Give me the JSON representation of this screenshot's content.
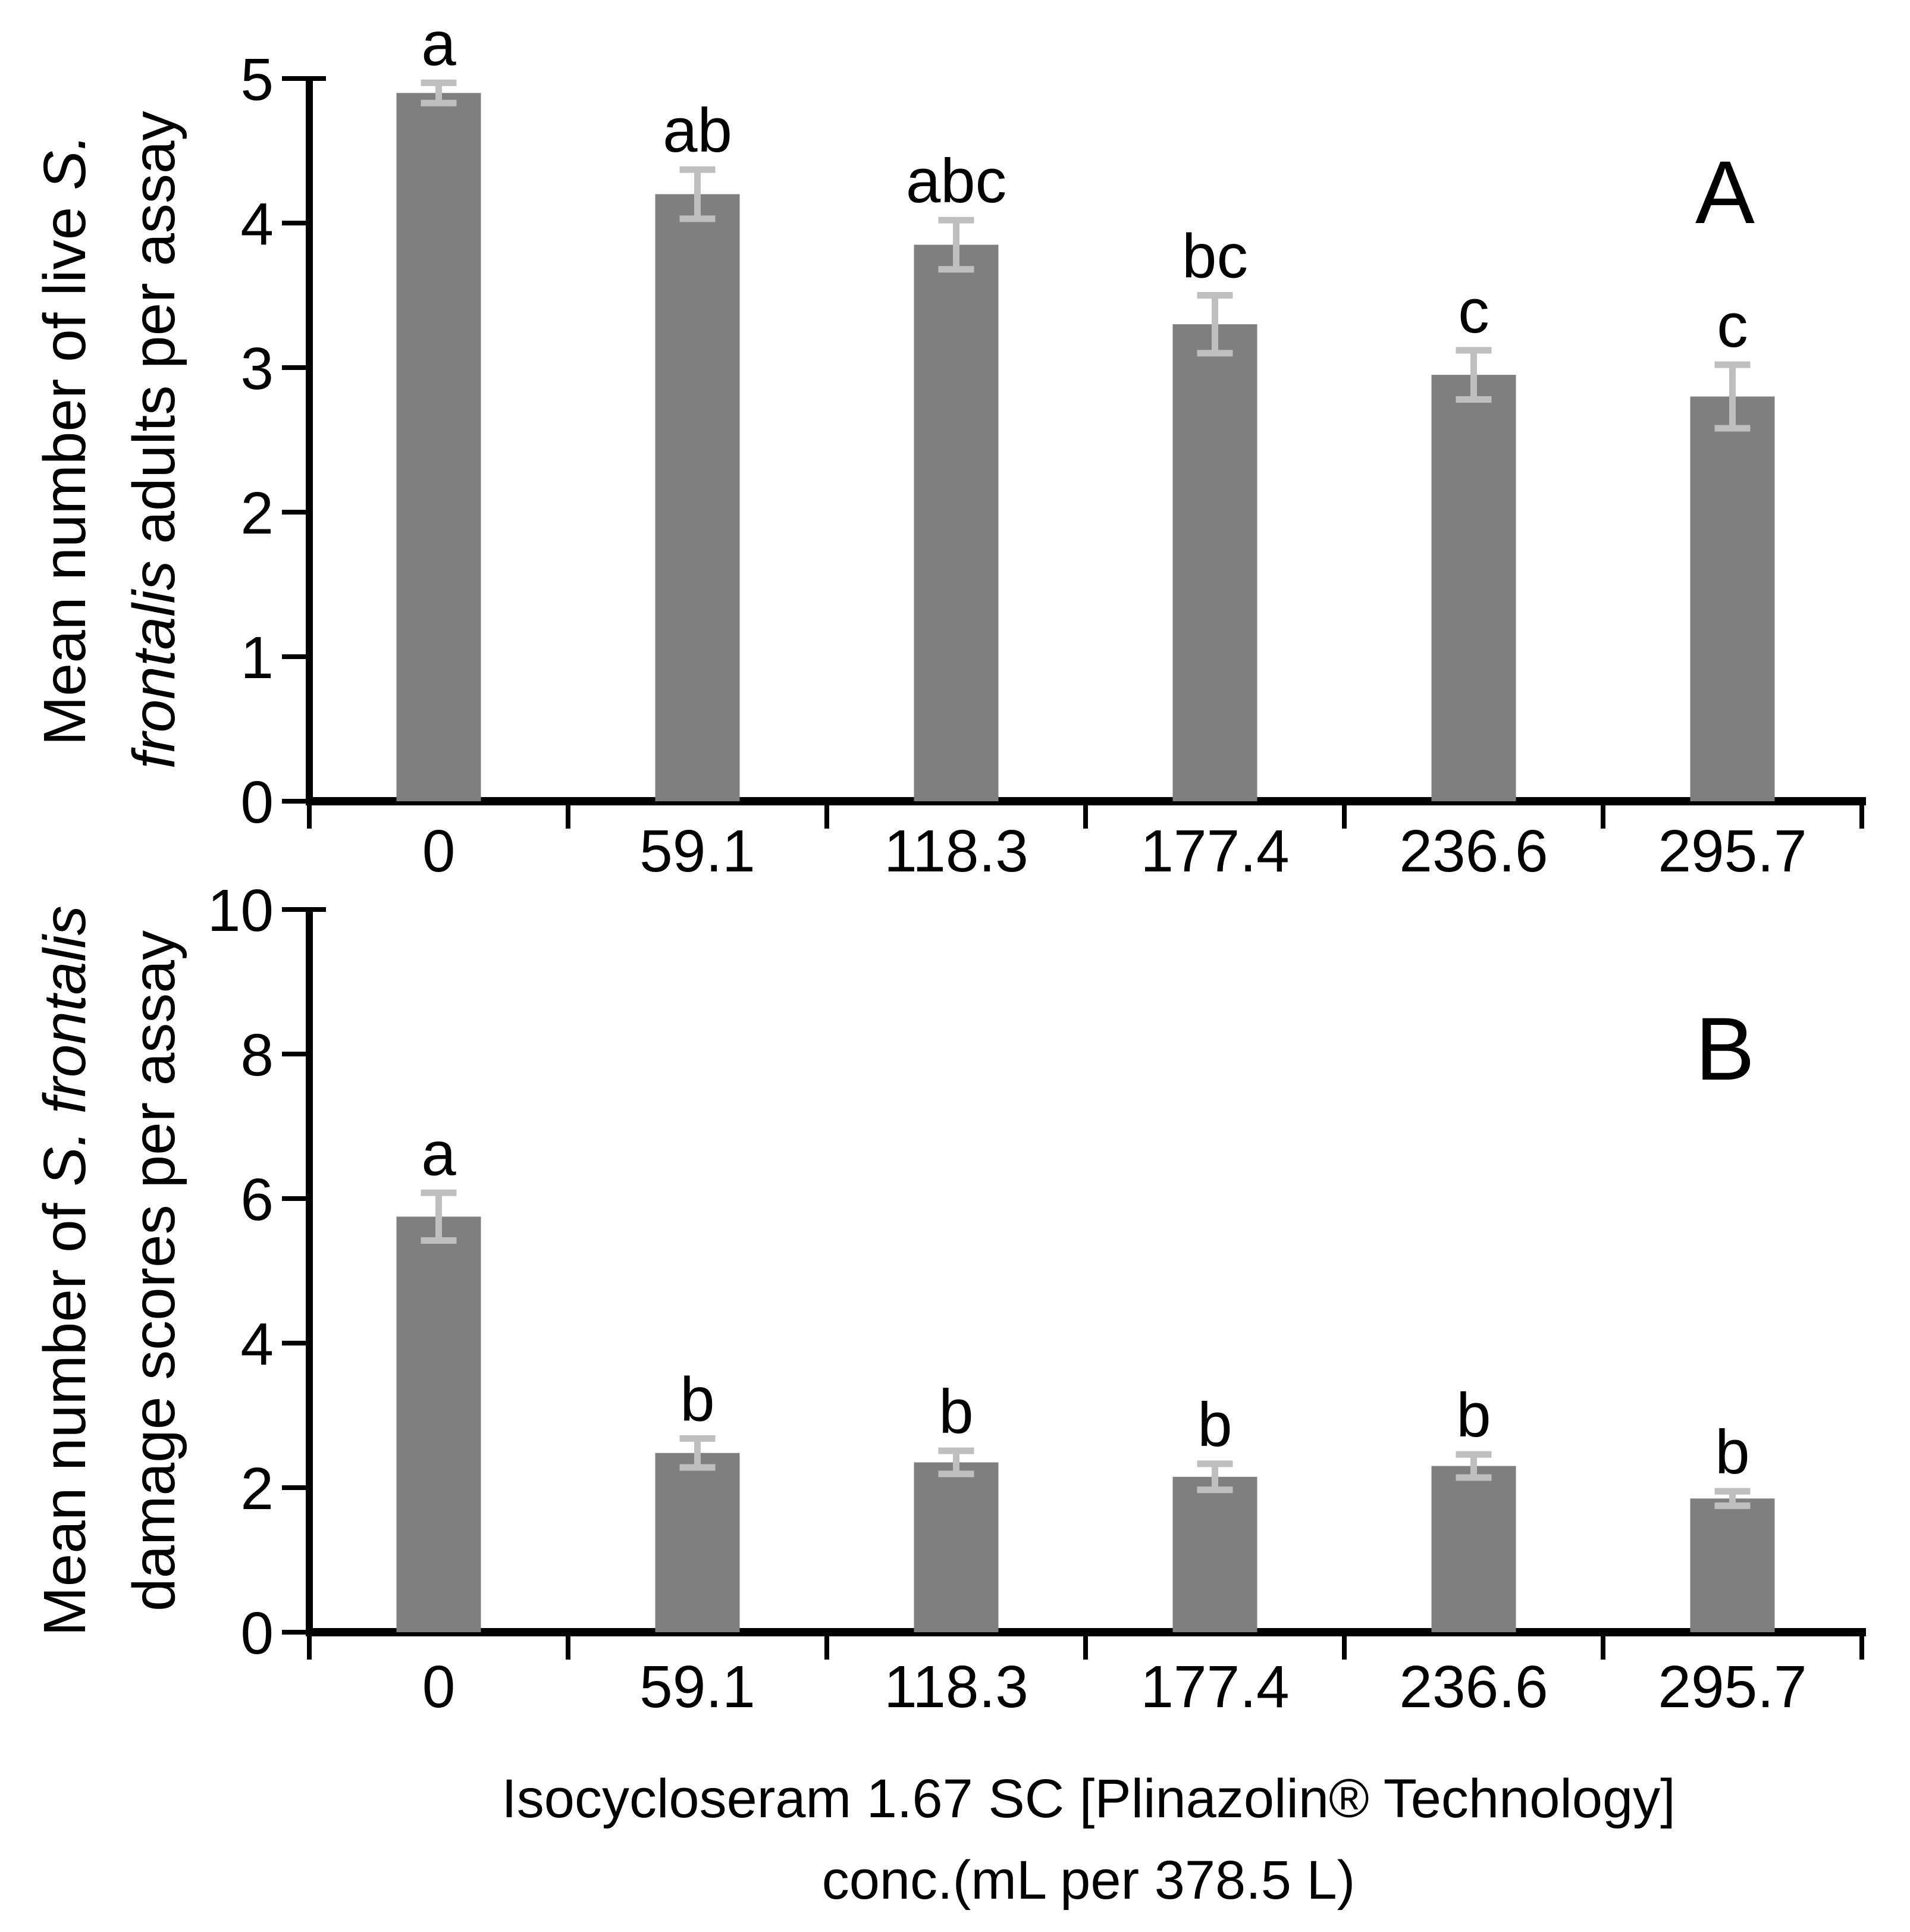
{
  "figure": {
    "background": "#ffffff",
    "bar_color": "#7f7f7f",
    "error_bar_color": "#bfbfbf",
    "axis_color": "#000000",
    "text_color": "#000000"
  },
  "chart_data": [
    {
      "type": "bar",
      "panel_label": "A",
      "ylabel": "Mean number of live S. frontalis adults per assay",
      "ylabel_lines": [
        [
          {
            "text": "Mean number of live ",
            "italic": false
          },
          {
            "text": "S.",
            "italic": true
          }
        ],
        [
          {
            "text": "frontalis",
            "italic": true
          },
          {
            "text": " adults per assay",
            "italic": false
          }
        ]
      ],
      "categories": [
        "0",
        "59.1",
        "118.3",
        "177.4",
        "236.6",
        "295.7"
      ],
      "values": [
        4.9,
        4.2,
        3.85,
        3.3,
        2.95,
        2.8
      ],
      "errors": [
        0.07,
        0.17,
        0.17,
        0.2,
        0.17,
        0.22
      ],
      "sig_letters": [
        "a",
        "ab",
        "abc",
        "bc",
        "c",
        "c"
      ],
      "ylim": [
        0,
        5
      ],
      "ytick_step": 1,
      "yticks": [
        0,
        1,
        2,
        3,
        4,
        5
      ],
      "grid": false,
      "legend": null
    },
    {
      "type": "bar",
      "panel_label": "B",
      "ylabel": "Mean number of S. frontalis damage scores per assay",
      "ylabel_lines": [
        [
          {
            "text": "Mean number of ",
            "italic": false
          },
          {
            "text": "S. frontalis",
            "italic": true
          }
        ],
        [
          {
            "text": "damage scores per assay",
            "italic": false
          }
        ]
      ],
      "categories": [
        "0",
        "59.1",
        "118.3",
        "177.4",
        "236.6",
        "295.7"
      ],
      "values": [
        5.75,
        2.48,
        2.35,
        2.15,
        2.3,
        1.85
      ],
      "errors": [
        0.33,
        0.2,
        0.16,
        0.18,
        0.16,
        0.1
      ],
      "sig_letters": [
        "a",
        "b",
        "b",
        "b",
        "b",
        "b"
      ],
      "ylim": [
        0,
        10
      ],
      "ytick_step": 2,
      "yticks": [
        0,
        2,
        4,
        6,
        8,
        10
      ],
      "grid": false,
      "legend": null
    }
  ],
  "xlabel_lines": [
    "Isocycloseram 1.67 SC [Plinazolin® Technology]",
    "conc.(mL per 378.5 L)"
  ],
  "xlabel": "Isocycloseram 1.67 SC [Plinazolin® Technology] conc.(mL per 378.5 L)"
}
